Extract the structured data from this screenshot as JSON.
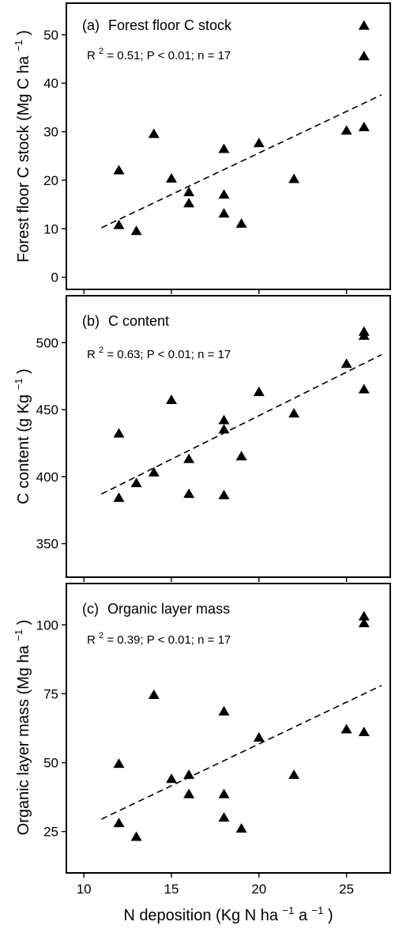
{
  "chart_data": [
    {
      "type": "scatter",
      "panel_label": "(a)",
      "title": "Forest floor C stock",
      "stats": {
        "r2_prefix": "R",
        "r2_exp": "2",
        "rest": " =  0.51; P < 0.01; n = 17"
      },
      "ylabel_main": "Forest floor C stock (Mg C ha",
      "ylabel_exp": "−1",
      "ylabel_close": ")",
      "xlim": [
        9,
        27.5
      ],
      "ylim": [
        -2.5,
        56.5
      ],
      "yticks": [
        0,
        10,
        20,
        30,
        40,
        50
      ],
      "x": [
        12,
        12,
        13,
        14,
        15,
        16,
        16,
        18,
        18,
        18,
        19,
        20,
        22,
        25,
        26,
        26,
        26
      ],
      "y": [
        22,
        10.7,
        9.5,
        29.5,
        20.3,
        17.5,
        15.2,
        26.4,
        17,
        13.1,
        11,
        27.6,
        20.2,
        30.2,
        30.9,
        45.5,
        51.8
      ],
      "fit": {
        "x": [
          11,
          27
        ],
        "y": [
          10.2,
          37.6
        ]
      },
      "grid": false,
      "legend": "none"
    },
    {
      "type": "scatter",
      "panel_label": "(b)",
      "title": "C content",
      "stats": {
        "r2_prefix": "R",
        "r2_exp": "2",
        "rest": " =  0.63; P < 0.01; n = 17"
      },
      "ylabel_main": "C content (g Kg",
      "ylabel_exp": "−1",
      "ylabel_close": ")",
      "xlim": [
        9,
        27.5
      ],
      "ylim": [
        325,
        535
      ],
      "yticks": [
        350,
        400,
        450,
        500
      ],
      "x": [
        12,
        12,
        13,
        14,
        15,
        16,
        16,
        18,
        18,
        18,
        19,
        20,
        22,
        25,
        26,
        26,
        26
      ],
      "y": [
        432,
        384,
        395,
        403,
        457,
        413,
        387,
        442,
        435,
        386,
        415,
        463,
        447,
        484,
        465,
        505,
        508
      ],
      "fit": {
        "x": [
          11,
          27
        ],
        "y": [
          387,
          491
        ]
      },
      "grid": false,
      "legend": "none"
    },
    {
      "type": "scatter",
      "panel_label": "(c)",
      "title": "Organic layer mass",
      "stats": {
        "r2_prefix": "R",
        "r2_exp": "2",
        "rest": " =  0.39; P < 0.01; n = 17"
      },
      "ylabel_main": "Organic layer mass (Mg ha",
      "ylabel_exp": "−1",
      "ylabel_close": ")",
      "xlabel_main": "N deposition (Kg N ha",
      "xlabel_exp1": "−1",
      "xlabel_mid": " a",
      "xlabel_exp2": "−1",
      "xlabel_close": ")",
      "xlim": [
        9,
        27.5
      ],
      "xticks": [
        10,
        15,
        20,
        25
      ],
      "ylim": [
        10,
        115
      ],
      "yticks": [
        25,
        50,
        75,
        100
      ],
      "x": [
        12,
        12,
        13,
        14,
        15,
        16,
        16,
        18,
        18,
        18,
        19,
        20,
        22,
        25,
        26,
        26,
        26
      ],
      "y": [
        49.5,
        28,
        23,
        74.5,
        44,
        45.5,
        38.5,
        68.5,
        38.5,
        30,
        26,
        59,
        45.5,
        62,
        61,
        100.5,
        103
      ],
      "fit": {
        "x": [
          11,
          27
        ],
        "y": [
          29.5,
          78
        ]
      },
      "grid": false,
      "legend": "none"
    }
  ]
}
